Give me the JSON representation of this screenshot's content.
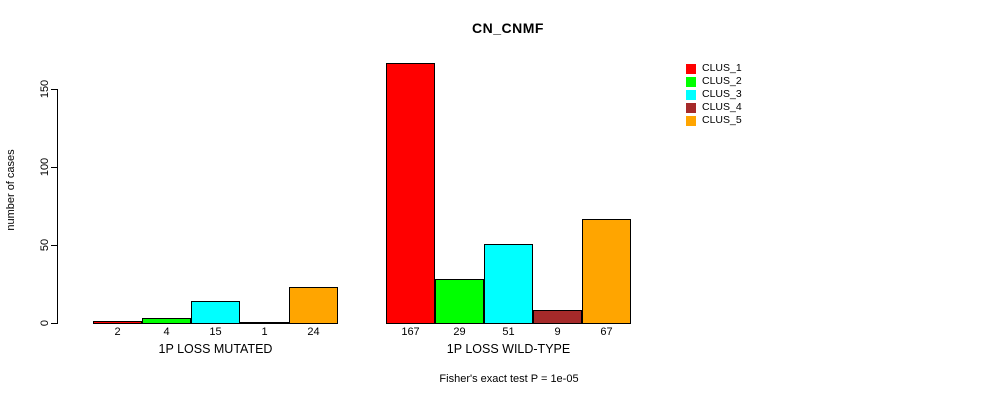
{
  "chart_data": {
    "type": "bar",
    "title": "CN_CNMF",
    "ylabel": "number of cases",
    "ylim": [
      0,
      150
    ],
    "yticks": [
      0,
      50,
      100,
      150
    ],
    "grid": false,
    "legend_position": "right",
    "categories": [
      "1P LOSS MUTATED",
      "1P LOSS WILD-TYPE"
    ],
    "series": [
      {
        "name": "CLUS_1",
        "color": "#ff0000",
        "values": [
          2,
          167
        ]
      },
      {
        "name": "CLUS_2",
        "color": "#00ff00",
        "values": [
          4,
          29
        ]
      },
      {
        "name": "CLUS_3",
        "color": "#00ffff",
        "values": [
          15,
          51
        ]
      },
      {
        "name": "CLUS_4",
        "color": "#a52a2a",
        "values": [
          1,
          9
        ]
      },
      {
        "name": "CLUS_5",
        "color": "#ffa500",
        "values": [
          24,
          67
        ]
      }
    ],
    "footnote": "Fisher's exact test P = 1e-05"
  }
}
